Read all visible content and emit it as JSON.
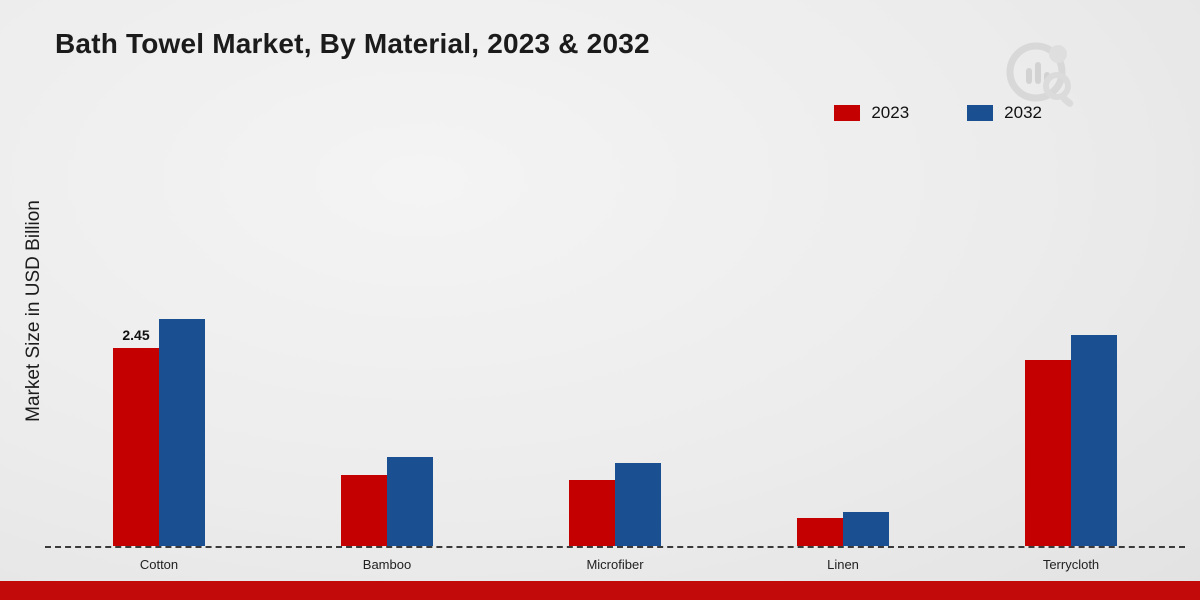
{
  "title": "Bath Towel Market, By Material, 2023 & 2032",
  "ylabel": "Market Size in USD Billion",
  "legend": [
    {
      "label": "2023",
      "color": "#c40000"
    },
    {
      "label": "2032",
      "color": "#1a5091"
    }
  ],
  "colors": {
    "series_2023": "#c40000",
    "series_2032": "#1a5091",
    "footer_accent": "#c30a0a",
    "axis_dash": "#3a3a3a"
  },
  "chart_data": {
    "type": "bar",
    "title": "Bath Towel Market, By Material, 2023 & 2032",
    "xlabel": "",
    "ylabel": "Market Size in USD Billion",
    "categories": [
      "Cotton",
      "Bamboo",
      "Microfiber",
      "Linen",
      "Terrycloth"
    ],
    "series": [
      {
        "name": "2023",
        "color": "#c40000",
        "values": [
          2.45,
          0.88,
          0.82,
          0.35,
          2.3
        ]
      },
      {
        "name": "2032",
        "color": "#1a5091",
        "values": [
          2.8,
          1.1,
          1.02,
          0.42,
          2.6
        ]
      }
    ],
    "data_labels": [
      {
        "category": "Cotton",
        "series": "2023",
        "value": "2.45"
      }
    ],
    "ylim": [
      0,
      5.5
    ],
    "grid": false,
    "legend_position": "top-right",
    "baseline_style": "dashed"
  }
}
